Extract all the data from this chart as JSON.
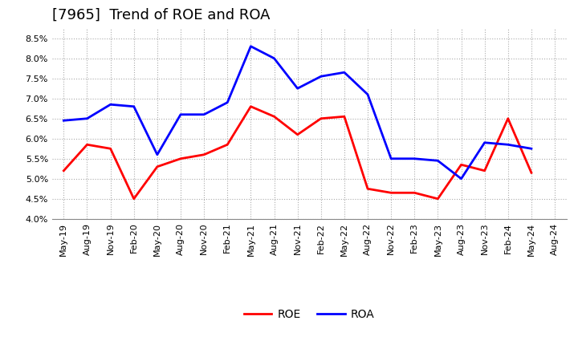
{
  "title": "[7965]  Trend of ROE and ROA",
  "x_labels": [
    "May-19",
    "Aug-19",
    "Nov-19",
    "Feb-20",
    "May-20",
    "Aug-20",
    "Nov-20",
    "Feb-21",
    "May-21",
    "Aug-21",
    "Nov-21",
    "Feb-22",
    "May-22",
    "Aug-22",
    "Nov-22",
    "Feb-23",
    "May-23",
    "Aug-23",
    "Nov-23",
    "Feb-24",
    "May-24",
    "Aug-24"
  ],
  "roe": [
    5.2,
    5.85,
    5.75,
    4.5,
    5.3,
    5.5,
    5.6,
    5.85,
    6.8,
    6.55,
    6.1,
    6.5,
    6.55,
    4.75,
    4.65,
    4.65,
    4.5,
    5.35,
    5.2,
    6.5,
    5.15,
    null
  ],
  "roa": [
    6.45,
    6.5,
    6.85,
    6.8,
    5.6,
    6.6,
    6.6,
    6.9,
    8.3,
    8.0,
    7.25,
    7.55,
    7.65,
    7.1,
    5.5,
    5.5,
    5.45,
    5.0,
    5.9,
    5.85,
    5.75,
    null
  ],
  "roe_color": "#ff0000",
  "roa_color": "#0000ff",
  "ylim": [
    4.0,
    8.75
  ],
  "yticks": [
    4.0,
    4.5,
    5.0,
    5.5,
    6.0,
    6.5,
    7.0,
    7.5,
    8.0,
    8.5
  ],
  "background_color": "#ffffff",
  "grid_color": "#aaaaaa",
  "title_fontsize": 13,
  "axis_fontsize": 8,
  "legend_fontsize": 10,
  "linewidth": 2.0
}
